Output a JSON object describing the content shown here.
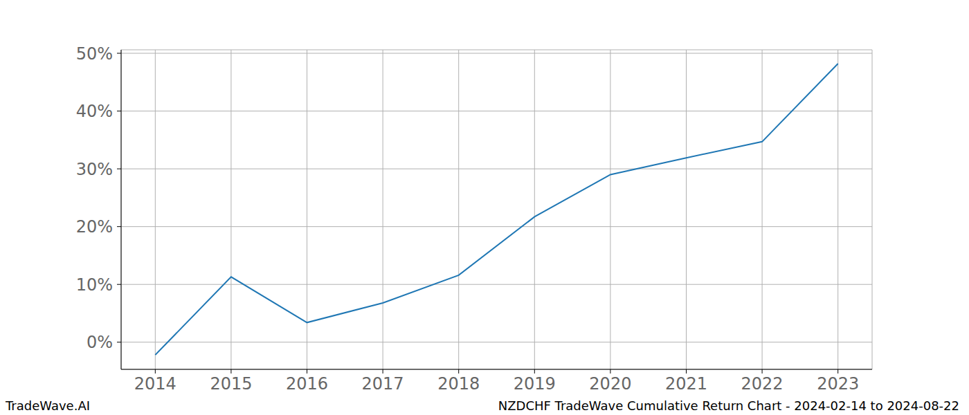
{
  "chart_data": {
    "type": "line",
    "title": "NZDCHF TradeWave Cumulative Return Chart - 2024-02-14 to 2024-08-22",
    "annotations": [
      "TradeWave.AI"
    ],
    "x": [
      2014,
      2015,
      2016,
      2017,
      2018,
      2019,
      2020,
      2021,
      2022,
      2023
    ],
    "values": [
      -2.2,
      11.3,
      3.4,
      6.8,
      11.6,
      21.7,
      29.0,
      31.9,
      34.7,
      48.2
    ],
    "color": "#1f77b4",
    "xlim": [
      2013.55,
      2023.45
    ],
    "xticks": [
      2014,
      2015,
      2016,
      2017,
      2018,
      2019,
      2020,
      2021,
      2022,
      2023
    ],
    "ylim": [
      -4.7,
      50.6
    ],
    "yticks": [
      {
        "value": 0,
        "label": "0%"
      },
      {
        "value": 10,
        "label": "10%"
      },
      {
        "value": 20,
        "label": "20%"
      },
      {
        "value": 30,
        "label": "30%"
      },
      {
        "value": 40,
        "label": "40%"
      },
      {
        "value": 50,
        "label": "50%"
      }
    ],
    "grid": true
  }
}
